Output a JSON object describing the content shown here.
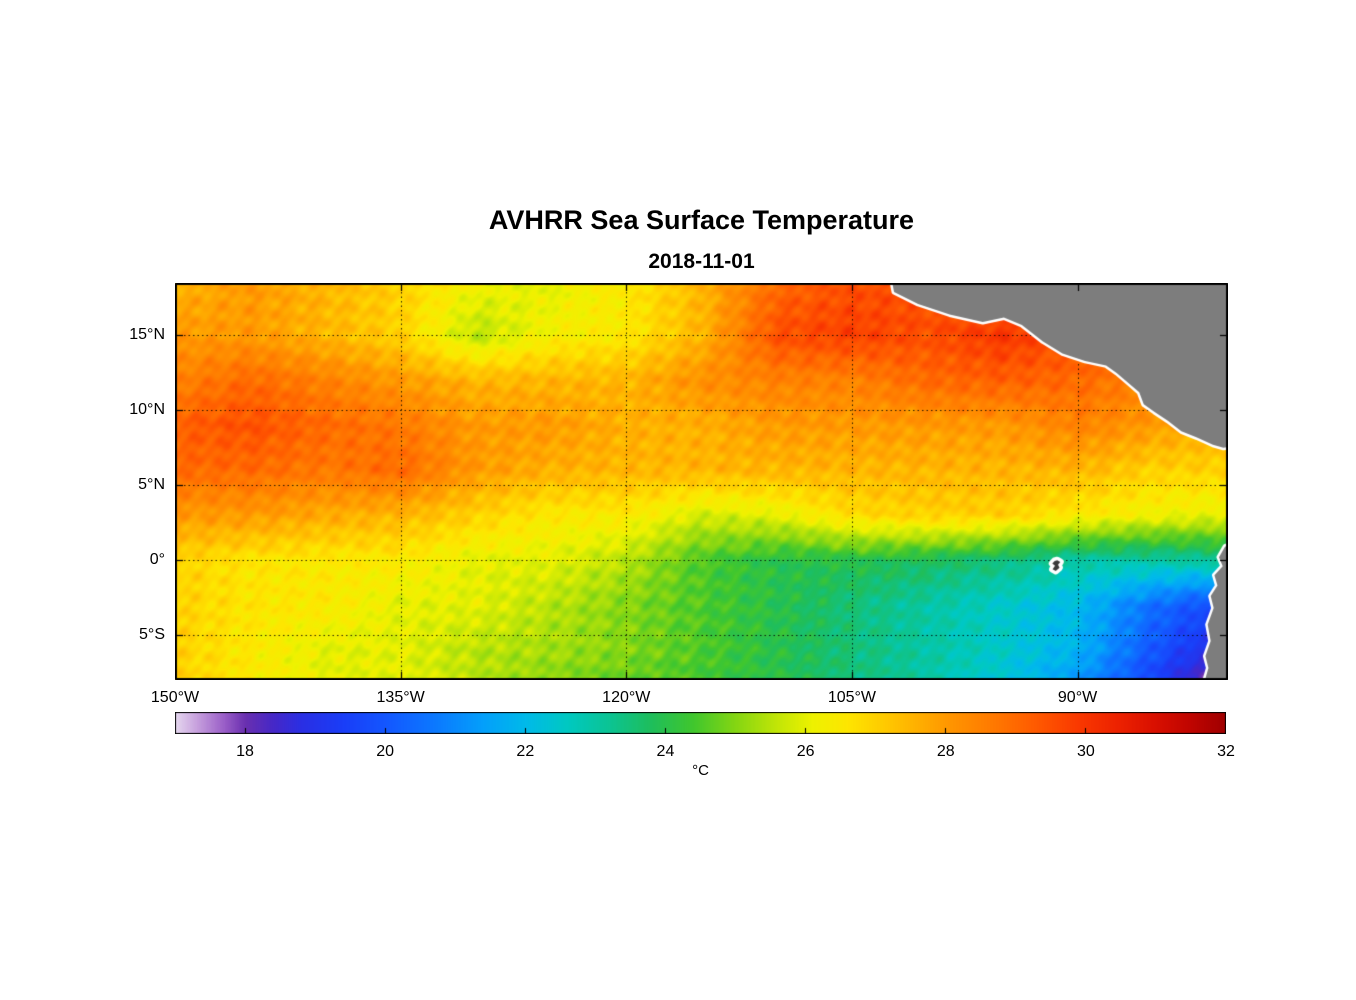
{
  "figure": {
    "title": "AVHRR Sea Surface Temperature",
    "subtitle": "2018-11-01"
  },
  "axes": {
    "x_ticks": [
      {
        "label": "150°W",
        "lon": -150
      },
      {
        "label": "135°W",
        "lon": -135
      },
      {
        "label": "120°W",
        "lon": -120
      },
      {
        "label": "105°W",
        "lon": -105
      },
      {
        "label": "90°W",
        "lon": -90
      }
    ],
    "y_ticks": [
      {
        "label": "15°N",
        "lat": 15
      },
      {
        "label": "10°N",
        "lat": 10
      },
      {
        "label": "5°N",
        "lat": 5
      },
      {
        "label": "0°",
        "lat": 0
      },
      {
        "label": "5°S",
        "lat": -5
      }
    ],
    "grid_lons": [
      -135,
      -120,
      -105,
      -90
    ],
    "grid_lats": [
      15,
      10,
      5,
      0,
      -5
    ]
  },
  "colorbar": {
    "min": 17,
    "max": 32,
    "tick_values": [
      18,
      20,
      22,
      24,
      26,
      28,
      30,
      32
    ],
    "tick_labels": [
      "18",
      "20",
      "22",
      "24",
      "26",
      "28",
      "30",
      "32"
    ],
    "unit": "°C"
  },
  "colors": {
    "background": "#ffffff",
    "land": "#7d7d7d",
    "island": "#3a3a3a",
    "coast_halo": "#ffffff",
    "frame": "#000000",
    "grid": "#000000",
    "text": "#000000"
  },
  "chart_data": {
    "type": "heatmap",
    "title": "AVHRR Sea Surface Temperature",
    "date": "2018-11-01",
    "value_name": "sea surface temperature",
    "value_unit": "°C",
    "lon_range": [
      -150,
      -80
    ],
    "lat_range": [
      18.5,
      -8
    ],
    "grid_lons": [
      -150,
      -145,
      -140,
      -135,
      -130,
      -125,
      -120,
      -115,
      -110,
      -105,
      -100,
      -95,
      -90,
      -85,
      -80
    ],
    "grid_lats": [
      18.5,
      15,
      12,
      9,
      6,
      3,
      0,
      -3,
      -6,
      -8
    ],
    "sst": [
      [
        27.5,
        28.0,
        27.5,
        27.0,
        26.2,
        26.0,
        26.5,
        27.5,
        29.0,
        29.5,
        29.5,
        29.0,
        29.0,
        28.5,
        28.5
      ],
      [
        28.0,
        28.0,
        27.5,
        27.0,
        25.5,
        26.3,
        26.5,
        27.5,
        29.5,
        29.8,
        29.5,
        30.0,
        29.5,
        29.0,
        28.5
      ],
      [
        28.5,
        29.0,
        28.5,
        28.0,
        27.5,
        27.5,
        27.5,
        28.2,
        28.5,
        28.5,
        29.0,
        29.2,
        29.0,
        28.5,
        28.0
      ],
      [
        29.2,
        29.5,
        29.0,
        28.7,
        28.0,
        28.0,
        27.6,
        27.6,
        28.0,
        28.0,
        28.0,
        28.0,
        28.5,
        28.0,
        27.5
      ],
      [
        29.0,
        29.0,
        28.7,
        29.0,
        28.0,
        27.6,
        27.5,
        27.5,
        27.5,
        27.5,
        27.5,
        27.5,
        27.5,
        27.0,
        27.0
      ],
      [
        28.0,
        28.0,
        27.7,
        27.5,
        27.0,
        26.5,
        26.5,
        25.8,
        26.0,
        26.8,
        27.0,
        27.0,
        26.5,
        26.2,
        26.0
      ],
      [
        27.0,
        26.6,
        26.5,
        26.5,
        26.0,
        26.0,
        25.5,
        24.5,
        24.0,
        24.0,
        23.8,
        23.5,
        23.0,
        23.0,
        23.2
      ],
      [
        27.0,
        26.6,
        26.5,
        26.0,
        26.0,
        25.5,
        25.0,
        24.5,
        24.0,
        23.5,
        23.0,
        22.5,
        22.0,
        20.5,
        19.5
      ],
      [
        27.0,
        26.5,
        26.0,
        26.0,
        25.5,
        25.3,
        25.0,
        24.5,
        24.0,
        23.5,
        23.0,
        22.5,
        21.8,
        20.0,
        18.5
      ],
      [
        27.0,
        26.5,
        26.0,
        26.0,
        25.5,
        25.0,
        24.7,
        24.4,
        24.0,
        23.5,
        23.0,
        22.3,
        21.3,
        19.5,
        17.5
      ]
    ],
    "colormap_stops": [
      [
        17.0,
        "#e6d8f0"
      ],
      [
        17.3,
        "#c8a2de"
      ],
      [
        17.7,
        "#9a5ec8"
      ],
      [
        18.0,
        "#6a30b0"
      ],
      [
        18.4,
        "#4628c8"
      ],
      [
        18.8,
        "#2b2fe4"
      ],
      [
        19.4,
        "#1a3ef8"
      ],
      [
        20.0,
        "#1457ff"
      ],
      [
        20.7,
        "#0c79ff"
      ],
      [
        21.4,
        "#04a0fb"
      ],
      [
        22.0,
        "#00baea"
      ],
      [
        22.6,
        "#00c9c2"
      ],
      [
        23.2,
        "#0cc494"
      ],
      [
        23.8,
        "#1fbe5c"
      ],
      [
        24.4,
        "#41c72e"
      ],
      [
        25.0,
        "#85d613"
      ],
      [
        25.6,
        "#c3e607"
      ],
      [
        26.1,
        "#eef200"
      ],
      [
        26.6,
        "#fee600"
      ],
      [
        27.1,
        "#ffcc00"
      ],
      [
        27.6,
        "#ffb000"
      ],
      [
        28.1,
        "#ff9400"
      ],
      [
        28.7,
        "#ff7900"
      ],
      [
        29.3,
        "#ff5a00"
      ],
      [
        29.9,
        "#fa3900"
      ],
      [
        30.5,
        "#ec2100"
      ],
      [
        31.0,
        "#d91000"
      ],
      [
        31.5,
        "#c00500"
      ],
      [
        32.0,
        "#a00000"
      ]
    ],
    "land_polygons": {
      "central_america": [
        [
          -102.5,
          19.5
        ],
        [
          -102.2,
          17.9
        ],
        [
          -100.6,
          17.1
        ],
        [
          -98.5,
          16.4
        ],
        [
          -96.3,
          15.9
        ],
        [
          -94.9,
          16.2
        ],
        [
          -93.7,
          15.7
        ],
        [
          -92.3,
          14.6
        ],
        [
          -91.0,
          13.8
        ],
        [
          -89.5,
          13.3
        ],
        [
          -88.1,
          13.0
        ],
        [
          -87.4,
          12.5
        ],
        [
          -86.7,
          11.9
        ],
        [
          -85.9,
          11.2
        ],
        [
          -85.6,
          10.4
        ],
        [
          -84.9,
          9.9
        ],
        [
          -84.0,
          9.3
        ],
        [
          -83.1,
          8.6
        ],
        [
          -82.1,
          8.2
        ],
        [
          -81.0,
          7.7
        ],
        [
          -80.3,
          7.5
        ],
        [
          -79.0,
          7.7
        ],
        [
          -79.0,
          19.5
        ]
      ],
      "south_america": [
        [
          -79.0,
          1.4
        ],
        [
          -80.2,
          0.9
        ],
        [
          -80.6,
          0.2
        ],
        [
          -80.35,
          -0.4
        ],
        [
          -80.9,
          -1.0
        ],
        [
          -80.7,
          -1.7
        ],
        [
          -81.15,
          -2.4
        ],
        [
          -80.95,
          -3.2
        ],
        [
          -81.35,
          -4.3
        ],
        [
          -81.15,
          -5.4
        ],
        [
          -81.5,
          -6.4
        ],
        [
          -81.3,
          -7.2
        ],
        [
          -81.7,
          -8.6
        ],
        [
          -79.0,
          -8.6
        ]
      ]
    },
    "islands": {
      "galapagos": [
        [
          -91.35,
          0.0
        ],
        [
          -91.15,
          -0.12
        ],
        [
          -91.3,
          -0.3
        ],
        [
          -91.2,
          -0.5
        ],
        [
          -91.45,
          -0.72
        ],
        [
          -91.66,
          -0.6
        ],
        [
          -91.5,
          -0.38
        ],
        [
          -91.68,
          -0.22
        ],
        [
          -91.52,
          -0.05
        ]
      ]
    }
  }
}
